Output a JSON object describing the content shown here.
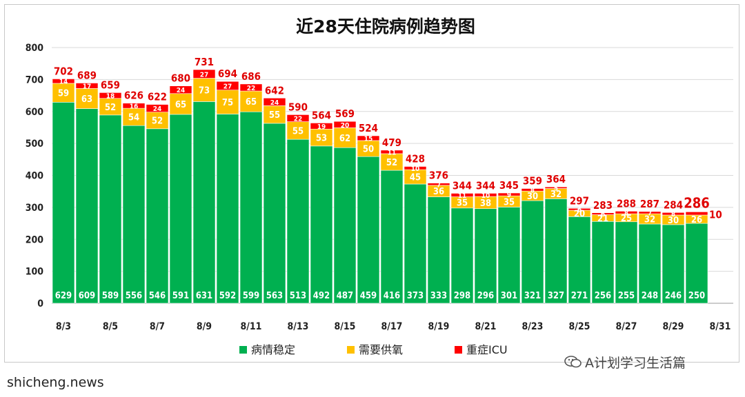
{
  "chart_data": {
    "type": "bar",
    "stacked": true,
    "title": "近28天住院病例趋势图",
    "x": [
      "8/3",
      "8/4",
      "8/5",
      "8/6",
      "8/7",
      "8/8",
      "8/9",
      "8/10",
      "8/11",
      "8/12",
      "8/13",
      "8/14",
      "8/15",
      "8/16",
      "8/17",
      "8/18",
      "8/19",
      "8/20",
      "8/21",
      "8/22",
      "8/23",
      "8/24",
      "8/25",
      "8/26",
      "8/27",
      "8/28",
      "8/29",
      "8/30"
    ],
    "x_tick_labels": [
      "8/3",
      "8/5",
      "8/7",
      "8/9",
      "8/11",
      "8/13",
      "8/15",
      "8/17",
      "8/19",
      "8/21",
      "8/23",
      "8/25",
      "8/27",
      "8/29",
      "8/31"
    ],
    "y_ticks": [
      0,
      100,
      200,
      300,
      400,
      500,
      600,
      700,
      800
    ],
    "ylim": [
      0,
      800
    ],
    "series": [
      {
        "name": "病情稳定",
        "color": "#00b050",
        "values": [
          629,
          609,
          589,
          556,
          546,
          591,
          631,
          592,
          599,
          563,
          513,
          492,
          487,
          459,
          416,
          373,
          333,
          298,
          296,
          301,
          321,
          327,
          271,
          256,
          255,
          248,
          246,
          250
        ]
      },
      {
        "name": "需要供氧",
        "color": "#ffc000",
        "values": [
          59,
          63,
          52,
          54,
          52,
          65,
          73,
          75,
          65,
          55,
          55,
          53,
          62,
          50,
          52,
          45,
          36,
          35,
          38,
          35,
          30,
          32,
          20,
          21,
          25,
          32,
          30,
          26
        ]
      },
      {
        "name": "重症ICU",
        "color": "#ff0000",
        "values": [
          14,
          17,
          18,
          16,
          24,
          24,
          27,
          27,
          22,
          24,
          22,
          19,
          20,
          15,
          11,
          10,
          7,
          11,
          10,
          9,
          8,
          5,
          6,
          6,
          8,
          7,
          8,
          10
        ]
      }
    ],
    "totals": [
      702,
      689,
      659,
      626,
      622,
      680,
      731,
      694,
      686,
      642,
      590,
      564,
      569,
      524,
      479,
      428,
      376,
      344,
      344,
      345,
      359,
      364,
      297,
      283,
      288,
      287,
      284,
      286
    ],
    "legend_position": "bottom",
    "grid": true
  },
  "watermark": "A计划学习生活篇",
  "footer": "shicheng.news"
}
